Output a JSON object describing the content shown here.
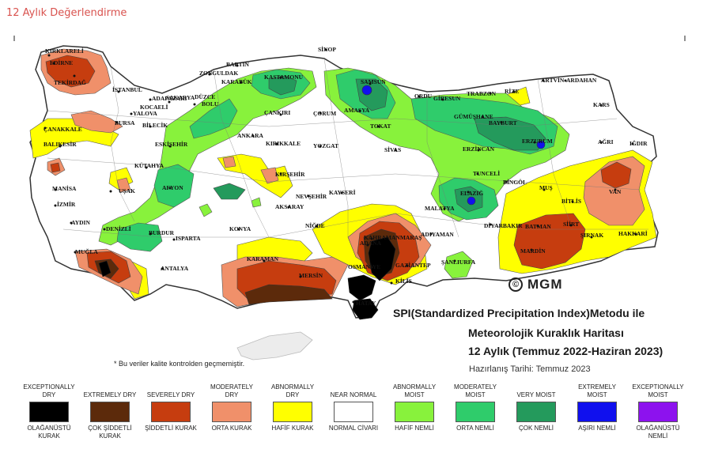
{
  "page_title": "12 Aylık Değerlendirme",
  "info": {
    "line1": "SPI(Standardized Precipitation Index)Metodu ile",
    "line2": "Meteorolojik Kuraklık Haritası",
    "line3": "12 Aylık (Temmuz 2022-Haziran 2023)",
    "line4": "Hazırlanış Tarihi: Temmuz 2023"
  },
  "note": "* Bu veriler kalite kontrolden geçmemiştir.",
  "logo": {
    "symbol": "©",
    "text": "MGM"
  },
  "cities": [
    "KIRKLARELİ",
    "EDİRNE",
    "TEKİRDAĞ",
    "İSTANBUL",
    "ÇANAKKALE",
    "BALIKESİR",
    "BURSA",
    "YALOVA",
    "KOCAELİ",
    "SAKARYA",
    "ADAPAZARI",
    "DÜZCE",
    "BOLU",
    "BİLECİK",
    "ESKİŞEHİR",
    "KÜTAHYA",
    "MANİSA",
    "İZMİR",
    "UŞAK",
    "AFYON",
    "AYDIN",
    "DENİZLİ",
    "MUĞLA",
    "BURDUR",
    "ISPARTA",
    "ANTALYA",
    "KONYA",
    "KARAMAN",
    "MERSİN",
    "ADANA",
    "OSMANİYE",
    "HATAY",
    "GAZİANTEP",
    "KİLİS",
    "ŞANLIURFA",
    "ADIYAMAN",
    "MALATYA",
    "ELAZIĞ",
    "TUNCELİ",
    "BİNGÖL",
    "DİYARBAKIR",
    "BATMAN",
    "SİİRT",
    "ŞIRNAK",
    "HAKKARİ",
    "MARDİN",
    "VAN",
    "BİTLİS",
    "MUŞ",
    "AĞRI",
    "IĞDIR",
    "KARS",
    "ARDAHAN",
    "ARTVİN",
    "RİZE",
    "TRABZON",
    "GİRESUN",
    "ORDU",
    "SAMSUN",
    "AMASYA",
    "TOKAT",
    "SİVAS",
    "ERZİNCAN",
    "ERZURUM",
    "BAYBURT",
    "GÜMÜŞHANE",
    "SİNOP",
    "KASTAMONU",
    "BARTIN",
    "ZONGULDAK",
    "KARABÜK",
    "ÇANKIRI",
    "ÇORUM",
    "KIRIKKALE",
    "ANKARA",
    "YOZGAT",
    "KIRŞEHİR",
    "NEVŞEHİR",
    "KAYSERİ",
    "AKSARAY",
    "NİĞDE",
    "KAHRAMANMARAŞ"
  ],
  "legend": [
    {
      "en": "EXCEPTIONALLY DRY",
      "tr": "OLAĞANÜSTÜ KURAK",
      "color": "#000000"
    },
    {
      "en": "EXTREMELY DRY",
      "tr": "ÇOK ŞİDDETLİ KURAK",
      "color": "#5c2a0b"
    },
    {
      "en": "SEVERELY DRY",
      "tr": "ŞİDDETLİ KURAK",
      "color": "#c63d0f"
    },
    {
      "en": "MODERATELY DRY",
      "tr": "ORTA KURAK",
      "color": "#f0906a"
    },
    {
      "en": "ABNORMALLY DRY",
      "tr": "HAFİF KURAK",
      "color": "#ffff00"
    },
    {
      "en": "NEAR NORMAL",
      "tr": "NORMAL CİVARI",
      "color": "#ffffff"
    },
    {
      "en": "ABNORMALLY MOIST",
      "tr": "HAFİF NEMLİ",
      "color": "#88f23c"
    },
    {
      "en": "MODERATELY MOIST",
      "tr": "ORTA NEMLİ",
      "color": "#2fcc6b"
    },
    {
      "en": "VERY MOIST",
      "tr": "ÇOK NEMLİ",
      "color": "#249a5c"
    },
    {
      "en": "EXTREMELY MOIST",
      "tr": "AŞIRI NEMLİ",
      "color": "#1010ee"
    },
    {
      "en": "EXCEPTIONALLY MOIST",
      "tr": "OLAĞANÜSTÜ NEMLİ",
      "color": "#8d12ee"
    }
  ]
}
